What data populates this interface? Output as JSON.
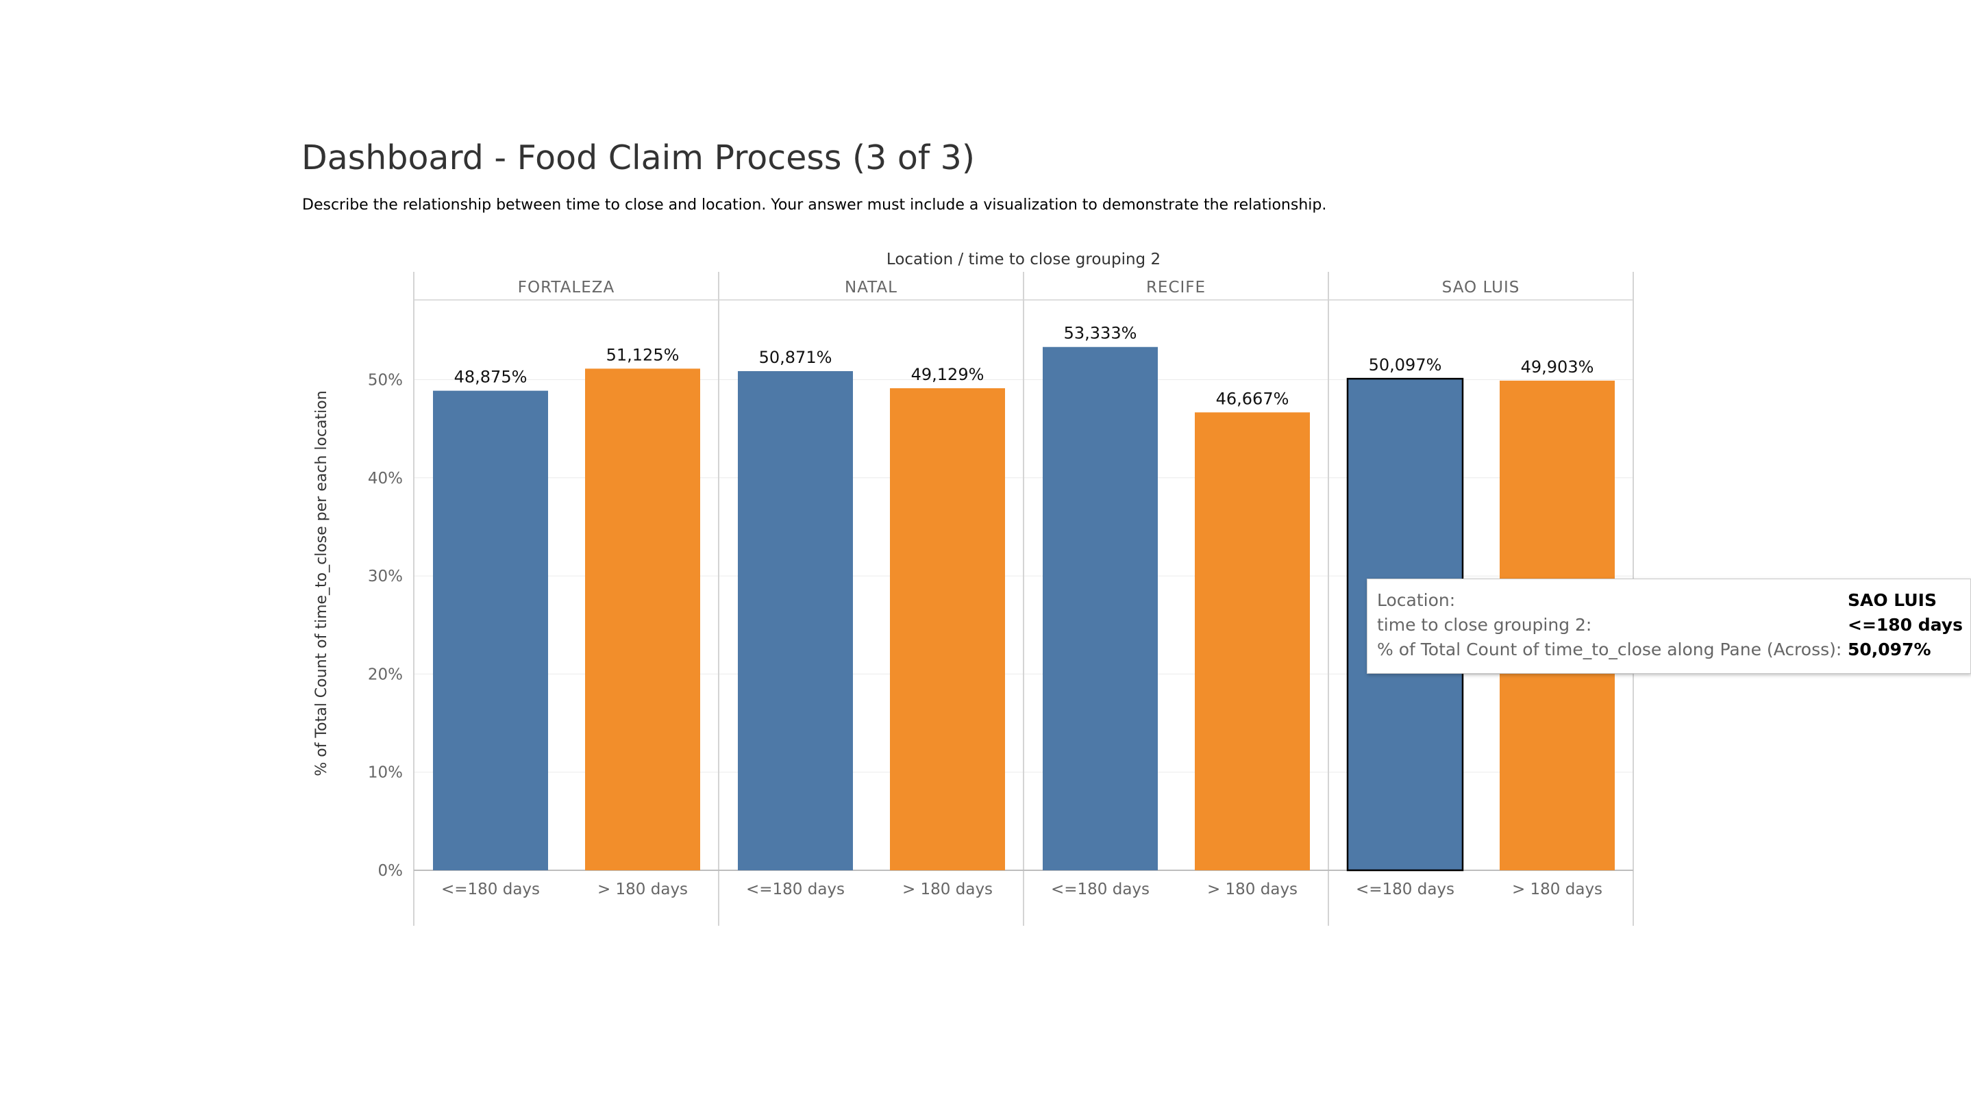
{
  "dashboard": {
    "title": "Dashboard - Food Claim Process (3 of 3)",
    "subtitle": "Describe the relationship between time to close and location. Your answer must include a visualization to demonstrate the relationship."
  },
  "chart_data": {
    "type": "bar",
    "title": "Location  /  time to close grouping 2",
    "ylabel": "% of Total Count of time_to_close per each location",
    "xlabel": "",
    "ylim": [
      0,
      60
    ],
    "yticks": [
      0,
      10,
      20,
      30,
      40,
      50
    ],
    "ytick_labels": [
      "0%",
      "10%",
      "20%",
      "30%",
      "40%",
      "50%"
    ],
    "grid": true,
    "categories": [
      "<=180 days",
      "> 180 days"
    ],
    "panes": [
      {
        "location": "FORTALEZA",
        "values": [
          48.875,
          51.125
        ],
        "labels": [
          "48,875%",
          "51,125%"
        ]
      },
      {
        "location": "NATAL",
        "values": [
          50.871,
          49.129
        ],
        "labels": [
          "50,871%",
          "49,129%"
        ]
      },
      {
        "location": "RECIFE",
        "values": [
          53.333,
          46.667
        ],
        "labels": [
          "53,333%",
          "46,667%"
        ]
      },
      {
        "location": "SAO LUIS",
        "values": [
          50.097,
          49.903
        ],
        "labels": [
          "50,097%",
          "49,903%"
        ]
      }
    ],
    "colors": [
      "#4e79a7",
      "#f28e2b"
    ],
    "highlighted": {
      "pane": 3,
      "bar": 0
    }
  },
  "tooltip": {
    "rows": [
      {
        "label": "Location:",
        "value": "SAO LUIS"
      },
      {
        "label": "time to close grouping 2:",
        "value": "<=180 days"
      },
      {
        "label": "% of Total Count of time_to_close along Pane (Across):",
        "value": "50,097%"
      }
    ]
  }
}
